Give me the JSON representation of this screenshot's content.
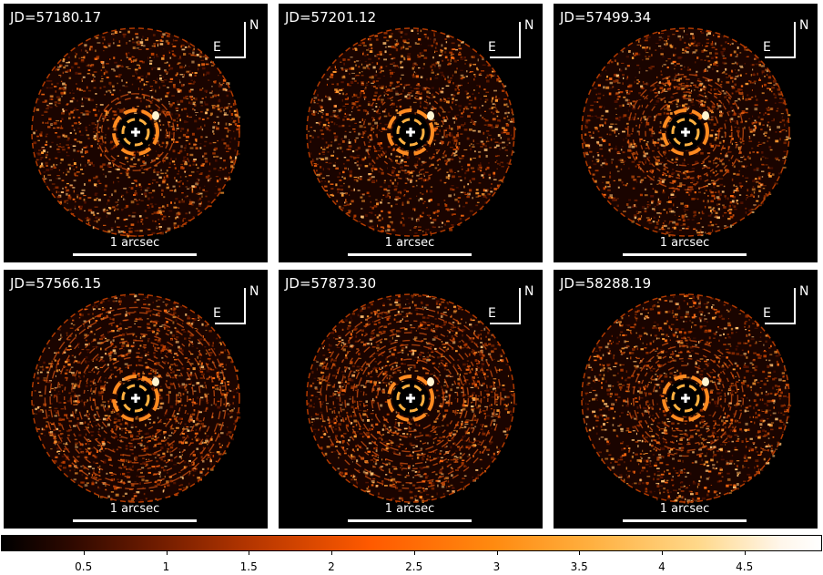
{
  "panels": [
    {
      "jd": "JD=57180.17",
      "scale_label": "1 arcsec",
      "compass_n": "N",
      "compass_e": "E",
      "ring_strength": 0.2
    },
    {
      "jd": "JD=57201.12",
      "scale_label": "1 arcsec",
      "compass_n": "N",
      "compass_e": "E",
      "ring_strength": 0.25
    },
    {
      "jd": "JD=57499.34",
      "scale_label": "1 arcsec",
      "compass_n": "N",
      "compass_e": "E",
      "ring_strength": 0.4
    },
    {
      "jd": "JD=57566.15",
      "scale_label": "1 arcsec",
      "compass_n": "N",
      "compass_e": "E",
      "ring_strength": 0.8
    },
    {
      "jd": "JD=57873.30",
      "scale_label": "1 arcsec",
      "compass_n": "N",
      "compass_e": "E",
      "ring_strength": 0.85
    },
    {
      "jd": "JD=58288.19",
      "scale_label": "1 arcsec",
      "compass_n": "N",
      "compass_e": "E",
      "ring_strength": 0.45
    }
  ],
  "colorbar": {
    "ticks": [
      "0.5",
      "1",
      "1.5",
      "2",
      "2.5",
      "3",
      "3.5",
      "4",
      "4.5"
    ],
    "colormap": "afmhot-like",
    "colors": [
      "#000000",
      "#6a1a00",
      "#ff5a00",
      "#ffb040",
      "#ffffff"
    ]
  }
}
